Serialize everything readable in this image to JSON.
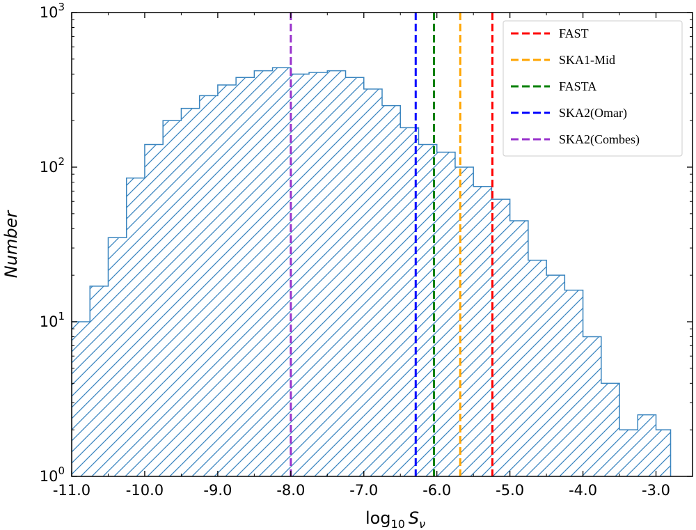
{
  "chart_data": {
    "type": "bar",
    "subtype": "step-histogram",
    "xlabel_base": "log",
    "xlabel_sub": "10",
    "xlabel_var": "S",
    "xlabel_var_sub": "ν",
    "ylabel": "Number",
    "xlim": [
      -11.0,
      -2.5
    ],
    "ylim": [
      1,
      1000
    ],
    "yscale": "log",
    "x_ticks": [
      -11.0,
      -10.0,
      -9.0,
      -8.0,
      -7.0,
      -6.0,
      -5.0,
      -4.0,
      -3.0
    ],
    "x_tick_labels": [
      "-11.0",
      "-10.0",
      "-9.0",
      "-8.0",
      "-7.0",
      "-6.0",
      "-5.0",
      "-4.0",
      "-3.0"
    ],
    "y_tick_labels": [
      {
        "value": 1,
        "base": "10",
        "exp": "0"
      },
      {
        "value": 10,
        "base": "10",
        "exp": "1"
      },
      {
        "value": 100,
        "base": "10",
        "exp": "2"
      },
      {
        "value": 1000,
        "base": "10",
        "exp": "3"
      }
    ],
    "grid": false,
    "fill": "hatched",
    "bar_color": "#3a85bf",
    "bin_edges": [
      -11.0,
      -10.75,
      -10.5,
      -10.25,
      -10.0,
      -9.75,
      -9.5,
      -9.25,
      -9.0,
      -8.75,
      -8.5,
      -8.25,
      -8.0,
      -7.75,
      -7.5,
      -7.25,
      -7.0,
      -6.75,
      -6.5,
      -6.25,
      -6.0,
      -5.75,
      -5.5,
      -5.25,
      -5.0,
      -4.75,
      -4.5,
      -4.25,
      -4.0,
      -3.75,
      -3.5,
      -3.25,
      -3.0,
      -2.8
    ],
    "counts": [
      10,
      17,
      35,
      85,
      140,
      200,
      240,
      290,
      340,
      380,
      420,
      440,
      400,
      410,
      420,
      380,
      320,
      250,
      180,
      140,
      125,
      100,
      75,
      62,
      45,
      25,
      20,
      16,
      8,
      4,
      2,
      2.5,
      2
    ],
    "legend_position": "top-right",
    "vlines": [
      {
        "label": "FAST",
        "x": -5.24,
        "color": "#ff0000"
      },
      {
        "label": "SKA1-Mid",
        "x": -5.68,
        "color": "#ffa500"
      },
      {
        "label": "FASTA",
        "x": -6.04,
        "color": "#008000"
      },
      {
        "label": "SKA2(Omar)",
        "x": -6.29,
        "color": "#0000ff"
      },
      {
        "label": "SKA2(Combes)",
        "x": -8.0,
        "color": "#9932cc"
      }
    ]
  }
}
